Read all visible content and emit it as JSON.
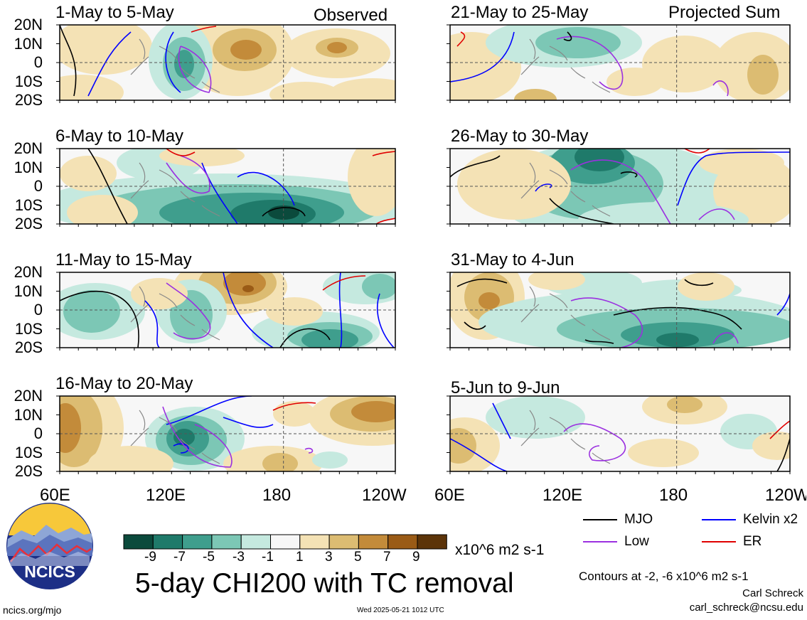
{
  "chart_data": {
    "type": "heatmap",
    "title": "5-day CHI200 with TC removal",
    "units": "x10^6 m2 s-1",
    "region": {
      "lon_range": [
        "60E",
        "120W"
      ],
      "lat_range": [
        "20S",
        "20N"
      ]
    },
    "xticks": [
      "60E",
      "120E",
      "180",
      "120W"
    ],
    "yticks": [
      "20N",
      "10N",
      "0",
      "10S",
      "20S"
    ],
    "colorbar": {
      "ticks": [
        "-9",
        "-7",
        "-5",
        "-3",
        "-1",
        "1",
        "3",
        "5",
        "7",
        "9"
      ],
      "colors": [
        "#0b4a3c",
        "#1f7a6a",
        "#3f9e8d",
        "#7cc7b5",
        "#c5e9df",
        "#f7f7f7",
        "#f4e2b5",
        "#dcbc72",
        "#c38b3a",
        "#9a5b16",
        "#5c3409"
      ]
    },
    "sections": {
      "observed": "Observed",
      "projected": "Projected Sum"
    },
    "panels": [
      {
        "id": "obs1",
        "label": "1-May to 5-May"
      },
      {
        "id": "obs2",
        "label": "6-May to 10-May"
      },
      {
        "id": "obs3",
        "label": "11-May to 15-May"
      },
      {
        "id": "obs4",
        "label": "16-May to 20-May"
      },
      {
        "id": "proj1",
        "label": "21-May to 25-May"
      },
      {
        "id": "proj2",
        "label": "26-May to 30-May"
      },
      {
        "id": "proj3",
        "label": "31-May to 4-Jun"
      },
      {
        "id": "proj4",
        "label": "5-Jun to 9-Jun"
      }
    ],
    "legend": [
      {
        "label": "MJO",
        "color": "#000000"
      },
      {
        "label": "Kelvin x2",
        "color": "#0000ff"
      },
      {
        "label": "Low",
        "color": "#9b30e0"
      },
      {
        "label": "ER",
        "color": "#e00000"
      }
    ],
    "contour_note": "Contours at -2, -6 x10^6 m2 s-1"
  },
  "footer": {
    "logo_text": "NCICS",
    "url": "ncics.org/mjo",
    "timestamp": "Wed 2025-05-21 1012 UTC",
    "author": "Carl Schreck",
    "email": "carl_schreck@ncsu.edu"
  }
}
